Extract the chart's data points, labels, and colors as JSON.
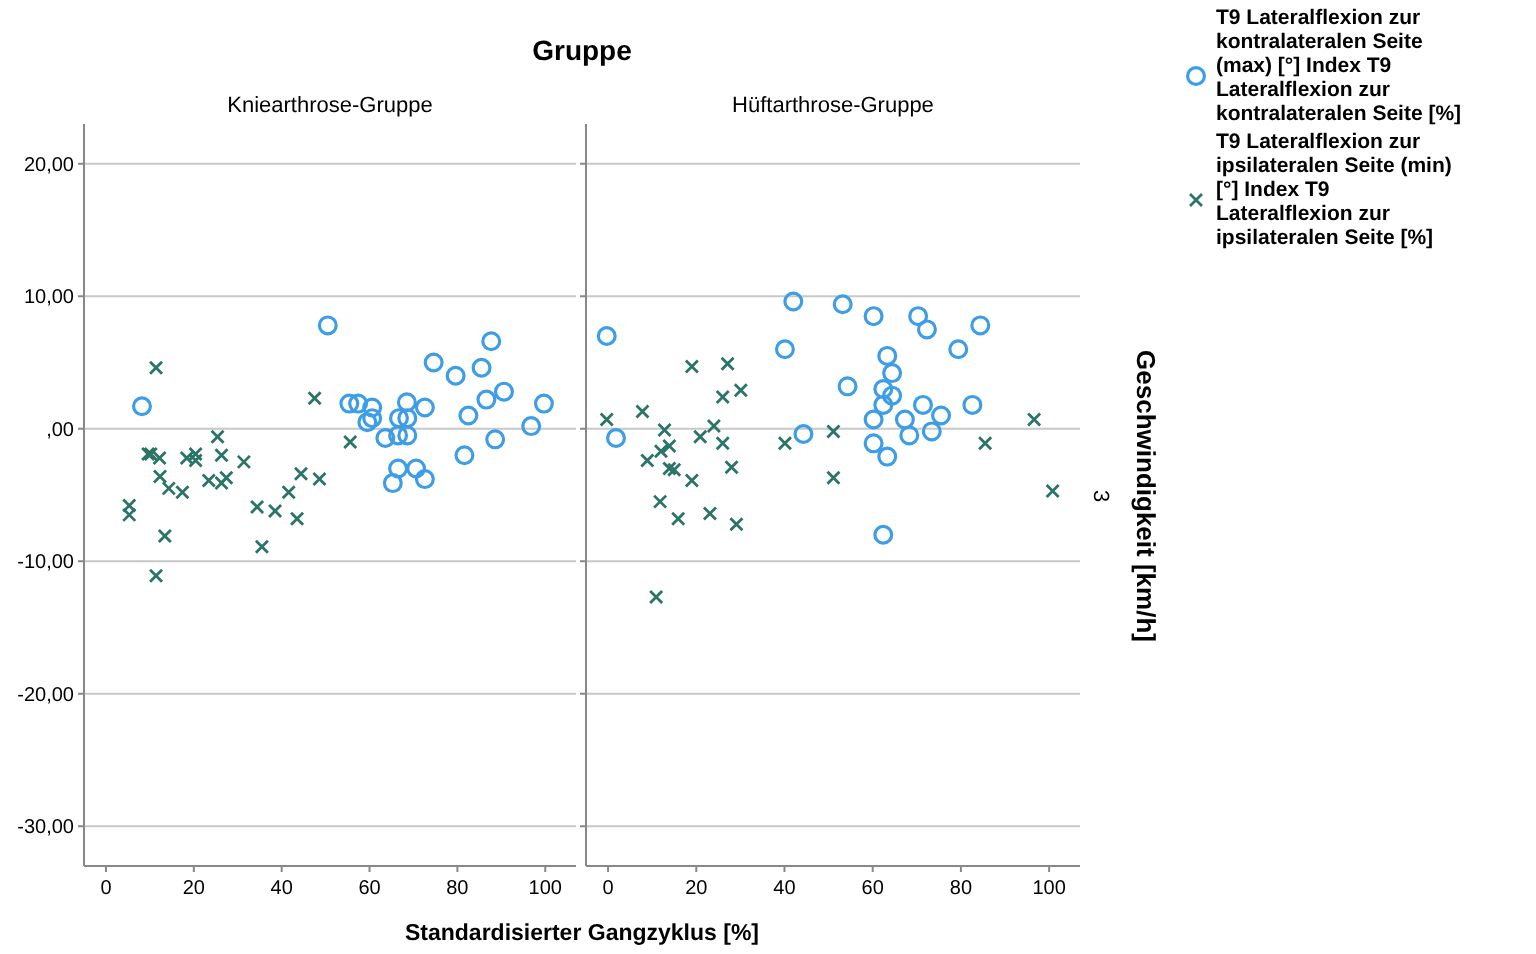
{
  "chart_data": [
    {
      "type": "scatter",
      "title": "Gruppe",
      "subtitle": "Kniearthrose-Gruppe",
      "xlabel": "Standardisierter Gangzyklus [%]",
      "xlim": [
        -5,
        107
      ],
      "xticks": [
        0,
        20,
        40,
        60,
        80,
        100
      ],
      "ylim": [
        -33,
        23
      ],
      "yticks": [
        {
          "value": -30,
          "label": "-30,00"
        },
        {
          "value": -20,
          "label": "-20,00"
        },
        {
          "value": -10,
          "label": "-10,00"
        },
        {
          "value": 0,
          "label": ",00"
        },
        {
          "value": 10,
          "label": "10,00"
        },
        {
          "value": 20,
          "label": "20,00"
        }
      ],
      "grid": "y",
      "legend": false,
      "series": [
        {
          "color": "#3d9de6",
          "marker": "circle",
          "x": [
            8.2,
            50.5,
            55.4,
            57.4,
            60.6,
            59.5,
            60.6,
            68.5,
            72.6,
            63.6,
            66.5,
            68.6,
            66.7,
            68.6,
            66.5,
            65.3,
            70.6,
            72.6,
            74.6,
            79.6,
            85.5,
            87.7,
            82.5,
            86.6,
            90.6,
            81.6,
            88.6,
            96.8,
            99.7
          ],
          "values": [
            1.7,
            7.8,
            1.9,
            1.9,
            1.6,
            0.5,
            0.8,
            2.0,
            1.6,
            -0.7,
            -0.5,
            0.8,
            0.8,
            -0.5,
            -3.0,
            -4.1,
            -3.0,
            -3.8,
            5.0,
            4.0,
            4.6,
            6.6,
            1.0,
            2.2,
            2.8,
            -2.0,
            -0.8,
            0.2,
            1.9
          ]
        },
        {
          "color": "#2a7468",
          "marker": "cross",
          "x": [
            11.4,
            9.6,
            10.2,
            12.2,
            12.3,
            14.3,
            17.4,
            5.3,
            5.3,
            13.4,
            11.4,
            25.4,
            20.4,
            18.4,
            20.4,
            26.3,
            23.4,
            26.3,
            27.4,
            31.4,
            34.4,
            35.5,
            38.5,
            41.6,
            43.5,
            44.4,
            48.6,
            47.5,
            55.6
          ],
          "values": [
            4.6,
            -1.9,
            -1.9,
            -2.2,
            -3.6,
            -4.5,
            -4.8,
            -5.8,
            -6.5,
            -8.1,
            -11.1,
            -0.6,
            -1.9,
            -2.2,
            -2.4,
            -2.0,
            -3.9,
            -4.1,
            -3.7,
            -2.5,
            -5.9,
            -8.9,
            -6.2,
            -4.8,
            -6.8,
            -3.4,
            -3.8,
            2.3,
            -1.0
          ]
        }
      ]
    },
    {
      "type": "scatter",
      "subtitle": "Hüftarthrose-Gruppe",
      "xlim": [
        -5,
        107
      ],
      "xticks": [
        0,
        20,
        40,
        60,
        80,
        100
      ],
      "ylim": [
        -33,
        23
      ],
      "yticks": [
        -30,
        -20,
        -10,
        0,
        10,
        20
      ],
      "tick_labels": "x",
      "grid": "y",
      "legend": "right",
      "annotations": [
        "Geschwindigkeit [km/h]",
        "3"
      ],
      "series": [
        {
          "name": "T9 Lateralflexion zur kontralateralen Seite (max) [°] Index T9 Lateralflexion zur kontralateralen Seite [%]",
          "color": "#3d9de6",
          "marker": "circle",
          "x": [
            -0.3,
            1.8,
            42.0,
            40.1,
            53.2,
            60.2,
            70.3,
            72.3,
            84.4,
            79.4,
            63.3,
            64.4,
            54.3,
            62.4,
            64.4,
            62.4,
            71.4,
            82.6,
            75.5,
            67.3,
            60.2,
            73.4,
            68.3,
            44.3,
            60.2,
            63.3,
            62.4
          ],
          "values": [
            7.0,
            -0.7,
            9.6,
            6.0,
            9.4,
            8.5,
            8.5,
            7.5,
            7.8,
            6.0,
            5.5,
            4.2,
            3.2,
            3.0,
            2.5,
            1.8,
            1.8,
            1.8,
            1.0,
            0.7,
            0.7,
            -0.2,
            -0.5,
            -0.4,
            -1.1,
            -2.1,
            -8.0
          ]
        },
        {
          "name": "T9 Lateralflexion zur ipsilateralen Seite (min) [°] Index T9 Lateralflexion zur ipsilateralen Seite [%]",
          "color": "#2a7468",
          "marker": "cross",
          "x": [
            -0.3,
            7.8,
            12.8,
            13.9,
            12.0,
            8.9,
            13.9,
            15.0,
            19.0,
            11.8,
            15.9,
            23.1,
            29.1,
            10.9,
            19.0,
            27.1,
            26.0,
            30.1,
            20.9,
            24.0,
            26.0,
            28.0,
            40.1,
            51.1,
            51.1,
            85.5,
            96.6,
            100.8
          ],
          "values": [
            0.7,
            1.3,
            -0.1,
            -1.3,
            -1.7,
            -2.4,
            -3.0,
            -3.1,
            -3.9,
            -5.5,
            -6.8,
            -6.4,
            -7.2,
            -12.7,
            4.7,
            4.9,
            2.4,
            2.9,
            -0.6,
            0.2,
            -1.1,
            -2.9,
            -1.1,
            -0.2,
            -3.7,
            -1.1,
            0.7,
            -4.7
          ]
        }
      ]
    }
  ]
}
